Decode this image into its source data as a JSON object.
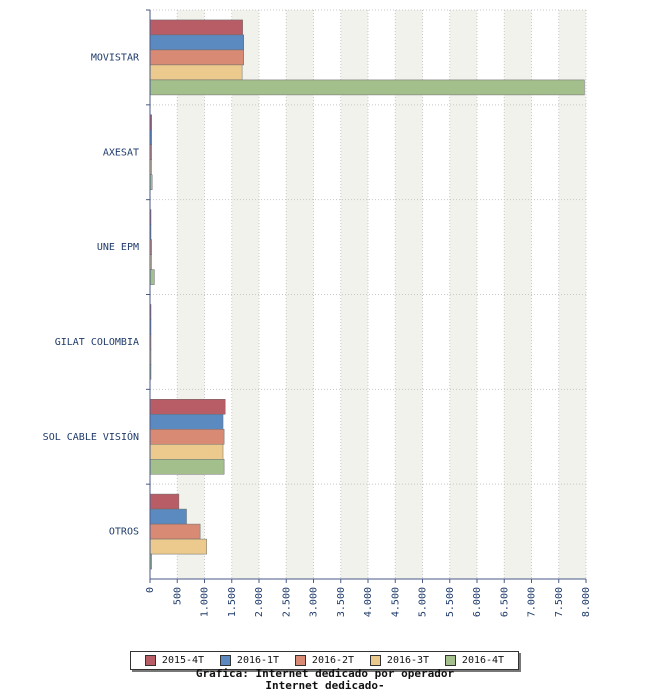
{
  "chart_data": {
    "type": "bar",
    "orientation": "horizontal",
    "categories": [
      "MOVISTAR",
      "AXESAT",
      "UNE EPM",
      "GILAT COLOMBIA",
      "SOL CABLE VISIÓN",
      "OTROS"
    ],
    "series": [
      {
        "name": "2015-4T",
        "color": "#b85c66",
        "values": [
          1700,
          30,
          10,
          5,
          1380,
          530
        ]
      },
      {
        "name": "2016-1T",
        "color": "#5b8ac0",
        "values": [
          1720,
          30,
          10,
          5,
          1340,
          670
        ]
      },
      {
        "name": "2016-2T",
        "color": "#d98a74",
        "values": [
          1720,
          30,
          30,
          5,
          1360,
          920
        ]
      },
      {
        "name": "2016-3T",
        "color": "#ecca8e",
        "values": [
          1690,
          30,
          30,
          5,
          1340,
          1040
        ]
      },
      {
        "name": "2016-4T",
        "color": "#a3bf8c",
        "values": [
          7970,
          40,
          80,
          5,
          1360,
          30
        ]
      }
    ],
    "xlim": [
      0,
      8000
    ],
    "xticks": [
      "0",
      "500",
      "1.000",
      "1.500",
      "2.000",
      "2.500",
      "3.000",
      "3.500",
      "4.000",
      "4.500",
      "5.000",
      "5.500",
      "6.000",
      "6.500",
      "7.000",
      "7.500",
      "8.000"
    ],
    "grid": true,
    "legend_position": "bottom",
    "title_lines": [
      "Grafica: Internet dedicado por operador",
      "Internet dedicado-"
    ]
  }
}
